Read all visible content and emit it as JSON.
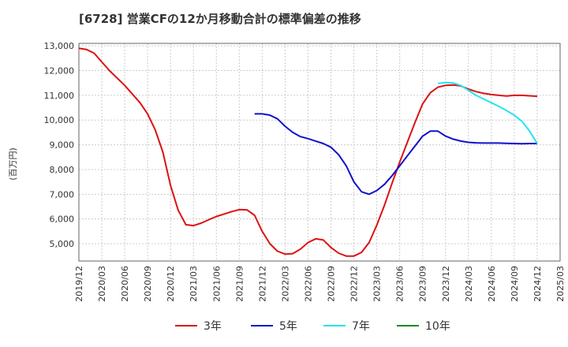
{
  "chart_data": {
    "type": "line",
    "title": "[6728]  営業CFの12か月移動合計の標準偏差の推移",
    "ylabel": "(百万円)",
    "xlabel": "",
    "ylim": [
      4300,
      13100
    ],
    "yticks": [
      5000,
      6000,
      7000,
      8000,
      9000,
      10000,
      11000,
      12000,
      13000
    ],
    "ytick_labels": [
      "5,000",
      "6,000",
      "7,000",
      "8,000",
      "9,000",
      "10,000",
      "11,000",
      "12,000",
      "13,000"
    ],
    "xlim": [
      "2019-12",
      "2025-03"
    ],
    "xtick_labels": [
      "2019/12",
      "2020/03",
      "2020/06",
      "2020/09",
      "2020/12",
      "2021/03",
      "2021/06",
      "2021/09",
      "2021/12",
      "2022/03",
      "2022/06",
      "2022/09",
      "2022/12",
      "2023/03",
      "2023/06",
      "2023/09",
      "2023/12",
      "2024/03",
      "2024/06",
      "2024/09",
      "2024/12",
      "2025/03"
    ],
    "grid": true,
    "legend_position": "bottom",
    "series": [
      {
        "name": "3年",
        "color": "#dd1111",
        "x": [
          "2019-12",
          "2020-01",
          "2020-02",
          "2020-03",
          "2020-04",
          "2020-05",
          "2020-06",
          "2020-07",
          "2020-08",
          "2020-09",
          "2020-10",
          "2020-11",
          "2020-12",
          "2021-01",
          "2021-02",
          "2021-03",
          "2021-04",
          "2021-05",
          "2021-06",
          "2021-07",
          "2021-08",
          "2021-09",
          "2021-10",
          "2021-11",
          "2021-12",
          "2022-01",
          "2022-02",
          "2022-03",
          "2022-04",
          "2022-05",
          "2022-06",
          "2022-07",
          "2022-08",
          "2022-09",
          "2022-10",
          "2022-11",
          "2022-12",
          "2023-01",
          "2023-02",
          "2023-03",
          "2023-04",
          "2023-05",
          "2023-06",
          "2023-07",
          "2023-08",
          "2023-09",
          "2023-10",
          "2023-11",
          "2023-12",
          "2024-01",
          "2024-02",
          "2024-03",
          "2024-04",
          "2024-05",
          "2024-06",
          "2024-07",
          "2024-08",
          "2024-09",
          "2024-10",
          "2024-11",
          "2024-12"
        ],
        "values": [
          12900,
          12850,
          12700,
          12350,
          12000,
          11700,
          11400,
          11050,
          10700,
          10250,
          9600,
          8700,
          7350,
          6350,
          5770,
          5730,
          5830,
          5970,
          6100,
          6200,
          6300,
          6380,
          6370,
          6150,
          5500,
          5000,
          4700,
          4580,
          4600,
          4780,
          5050,
          5200,
          5150,
          4850,
          4620,
          4500,
          4500,
          4650,
          5050,
          5750,
          6550,
          7450,
          8300,
          9100,
          9900,
          10650,
          11100,
          11330,
          11400,
          11420,
          11380,
          11250,
          11150,
          11080,
          11030,
          11000,
          10970,
          11000,
          11000,
          10980,
          10960
        ]
      },
      {
        "name": "5年",
        "color": "#1111cc",
        "x": [
          "2021-11",
          "2021-12",
          "2022-01",
          "2022-02",
          "2022-03",
          "2022-04",
          "2022-05",
          "2022-06",
          "2022-07",
          "2022-08",
          "2022-09",
          "2022-10",
          "2022-11",
          "2022-12",
          "2023-01",
          "2023-02",
          "2023-03",
          "2023-04",
          "2023-05",
          "2023-06",
          "2023-07",
          "2023-08",
          "2023-09",
          "2023-10",
          "2023-11",
          "2023-12",
          "2024-01",
          "2024-02",
          "2024-03",
          "2024-04",
          "2024-05",
          "2024-06",
          "2024-07",
          "2024-08",
          "2024-09",
          "2024-10",
          "2024-11",
          "2024-12"
        ],
        "values": [
          10250,
          10250,
          10200,
          10050,
          9750,
          9500,
          9330,
          9250,
          9150,
          9050,
          8900,
          8600,
          8150,
          7500,
          7100,
          7000,
          7150,
          7400,
          7750,
          8150,
          8550,
          8950,
          9350,
          9550,
          9550,
          9350,
          9230,
          9150,
          9100,
          9080,
          9070,
          9070,
          9070,
          9060,
          9050,
          9040,
          9050,
          9050
        ]
      },
      {
        "name": "7年",
        "color": "#22e5f0",
        "x": [
          "2023-11",
          "2023-12",
          "2024-01",
          "2024-02",
          "2024-03",
          "2024-04",
          "2024-05",
          "2024-06",
          "2024-07",
          "2024-08",
          "2024-09",
          "2024-10",
          "2024-11",
          "2024-12"
        ],
        "values": [
          11480,
          11520,
          11500,
          11400,
          11200,
          11000,
          10850,
          10700,
          10550,
          10380,
          10200,
          9950,
          9550,
          9050
        ]
      },
      {
        "name": "10年",
        "color": "#228822",
        "x": [],
        "values": []
      }
    ]
  }
}
